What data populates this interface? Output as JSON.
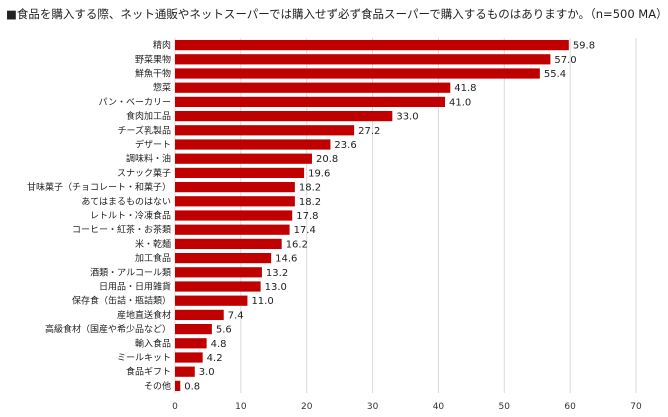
{
  "chart_data": {
    "type": "bar",
    "orientation": "horizontal",
    "title": "■食品を購入する際、ネット通販やネットスーパーでは購入せず必ず食品スーパーで購入するものはありますか。（n=500 MA）",
    "categories": [
      "精肉",
      "野菜果物",
      "鮮魚干物",
      "惣菜",
      "パン・ベーカリー",
      "食肉加工品",
      "チーズ乳製品",
      "デザート",
      "調味料・油",
      "スナック菓子",
      "甘味菓子（チョコレート・和菓子）",
      "あてはまるものはない",
      "レトルト・冷凍食品",
      "コーヒー・紅茶・お茶類",
      "米・乾麺",
      "加工食品",
      "酒類・アルコール類",
      "日用品・日用雑貨",
      "保存食（缶詰・瓶詰類）",
      "産地直送食材",
      "高級食材（国産や希少品など）",
      "輸入食品",
      "ミールキット",
      "食品ギフト",
      "その他"
    ],
    "values": [
      59.8,
      57.0,
      55.4,
      41.8,
      41.0,
      33.0,
      27.2,
      23.6,
      20.8,
      19.6,
      18.2,
      18.2,
      17.8,
      17.4,
      16.2,
      14.6,
      13.2,
      13.0,
      11.0,
      7.4,
      5.6,
      4.8,
      4.2,
      3.0,
      0.8
    ],
    "value_labels": [
      "59.8",
      "57.0",
      "55.4",
      "41.8",
      "41.0",
      "33.0",
      "27.2",
      "23.6",
      "20.8",
      "19.6",
      "18.2",
      "18.2",
      "17.8",
      "17.4",
      "16.2",
      "14.6",
      "13.2",
      "13.0",
      "11.0",
      "7.4",
      "5.6",
      "4.8",
      "4.2",
      "3.0",
      "0.8"
    ],
    "xlim": [
      0,
      70
    ],
    "xticks": [
      0,
      10,
      20,
      30,
      40,
      50,
      60,
      70
    ],
    "grid": true,
    "bar_color": "#c00000"
  }
}
